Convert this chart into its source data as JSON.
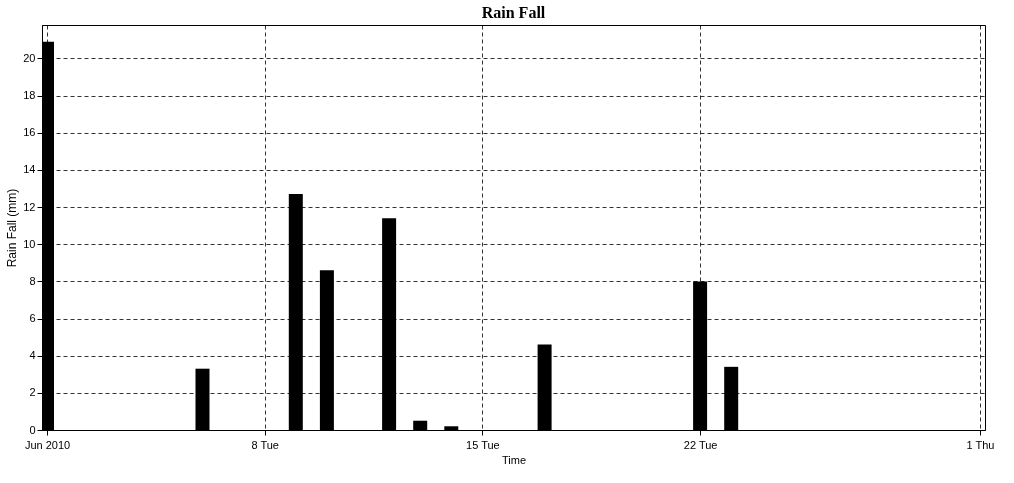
{
  "chart_data": {
    "type": "bar",
    "title": "Rain Fall",
    "xlabel": "Time",
    "ylabel": "Rain Fall (mm)",
    "x": [
      "2010-06-01",
      "2010-06-06",
      "2010-06-09",
      "2010-06-10",
      "2010-06-12",
      "2010-06-13",
      "2010-06-14",
      "2010-06-17",
      "2010-06-22",
      "2010-06-23"
    ],
    "values": [
      20.9,
      3.3,
      12.7,
      8.6,
      11.4,
      0.5,
      0.2,
      4.6,
      8.0,
      3.4
    ],
    "color": "#000000",
    "xlim": [
      "2010-06-01",
      "2010-07-01"
    ],
    "xticks": [
      {
        "value": "2010-06-01",
        "label": "Jun 2010"
      },
      {
        "value": "2010-06-08",
        "label": "8 Tue"
      },
      {
        "value": "2010-06-15",
        "label": "15 Tue"
      },
      {
        "value": "2010-06-22",
        "label": "22 Tue"
      },
      {
        "value": "2010-07-01",
        "label": "1 Thu"
      }
    ],
    "ylim": [
      0,
      21.8
    ],
    "yticks": [
      0,
      2,
      4,
      6,
      8,
      10,
      12,
      14,
      16,
      18,
      20
    ],
    "grid": true
  }
}
